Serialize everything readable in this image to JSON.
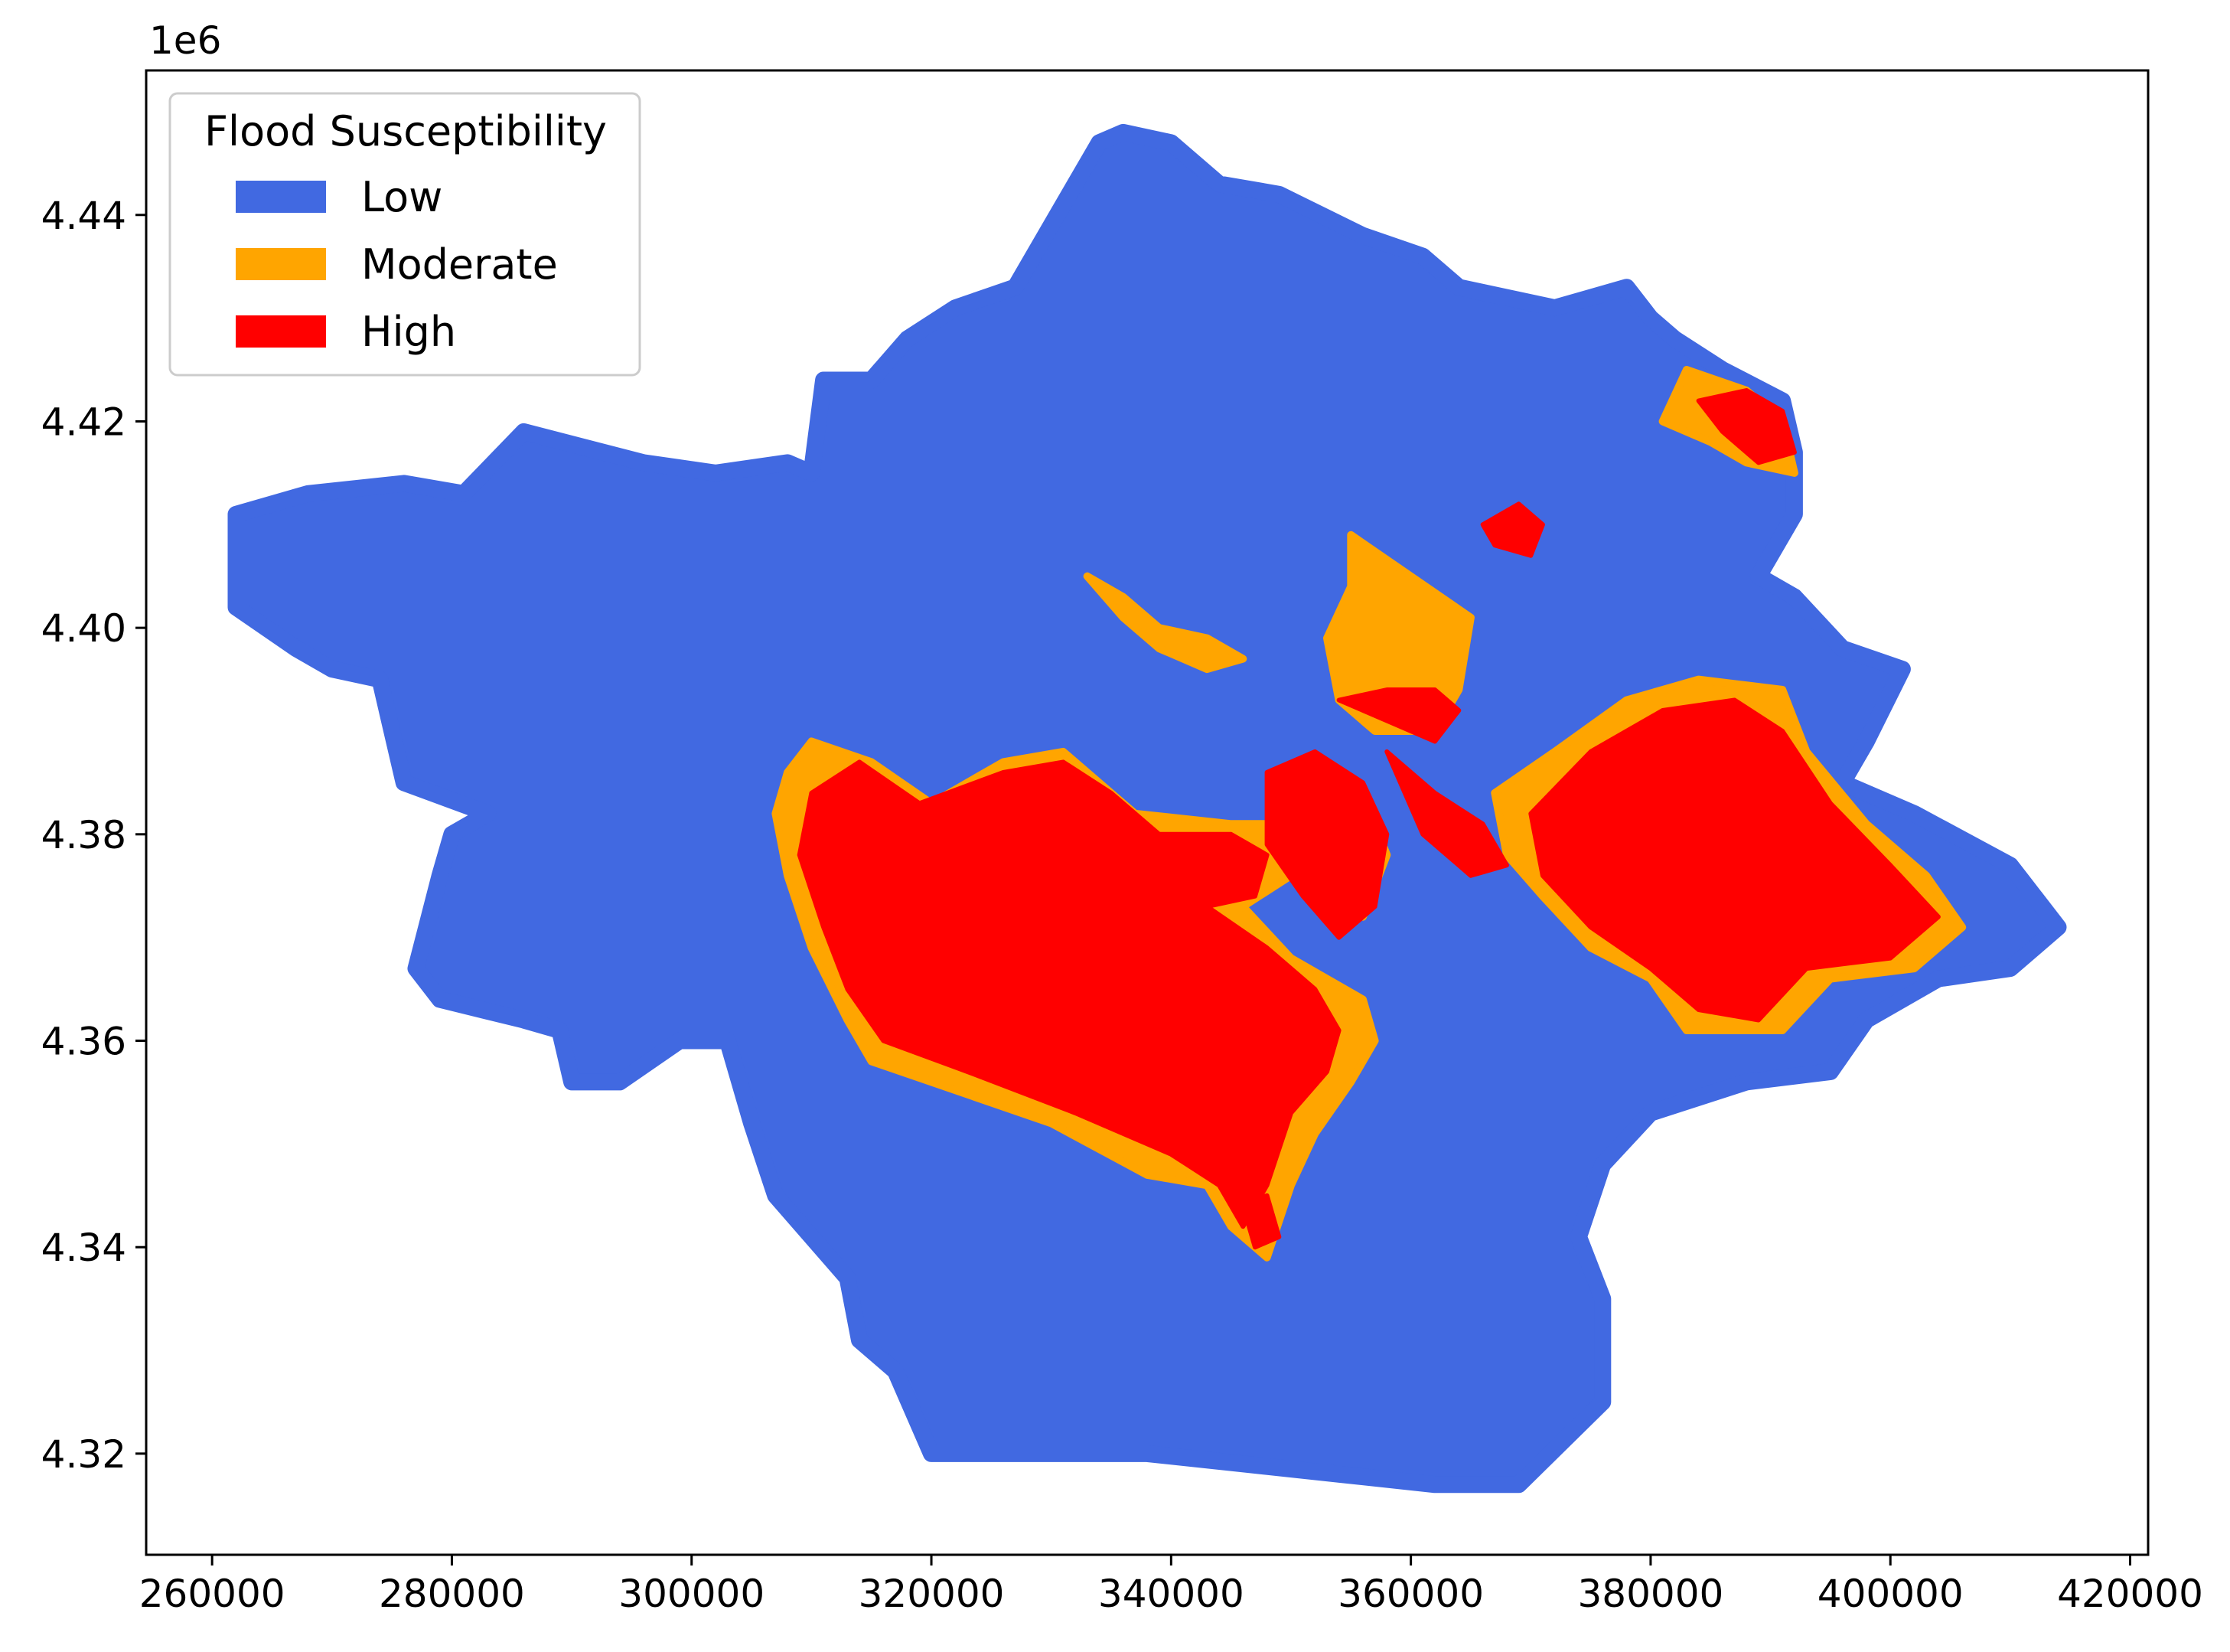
{
  "chart_data": {
    "type": "map",
    "offset_label": "1e6",
    "x_ticks": [
      {
        "value": 260000,
        "label": "260000"
      },
      {
        "value": 280000,
        "label": "280000"
      },
      {
        "value": 300000,
        "label": "300000"
      },
      {
        "value": 320000,
        "label": "320000"
      },
      {
        "value": 340000,
        "label": "340000"
      },
      {
        "value": 360000,
        "label": "360000"
      },
      {
        "value": 380000,
        "label": "380000"
      },
      {
        "value": 400000,
        "label": "400000"
      },
      {
        "value": 420000,
        "label": "420000"
      }
    ],
    "y_ticks": [
      {
        "value": 4.32,
        "label": "4.32"
      },
      {
        "value": 4.34,
        "label": "4.34"
      },
      {
        "value": 4.36,
        "label": "4.36"
      },
      {
        "value": 4.38,
        "label": "4.38"
      },
      {
        "value": 4.4,
        "label": "4.40"
      },
      {
        "value": 4.42,
        "label": "4.42"
      },
      {
        "value": 4.44,
        "label": "4.44"
      }
    ],
    "xlim": [
      254500,
      421500
    ],
    "ylim": [
      4.3102,
      4.454
    ],
    "grid": false,
    "legend": {
      "title": "Flood Susceptibility",
      "placement": "top-left",
      "entries": [
        {
          "label": "Low",
          "color": "#4169E1"
        },
        {
          "label": "Moderate",
          "color": "#FFA500"
        },
        {
          "label": "High",
          "color": "#FF0000"
        }
      ]
    },
    "classes": [
      {
        "name": "Low",
        "color": "#4169E1",
        "boundary": [
          [
            262000,
            4.402
          ],
          [
            262000,
            4.411
          ],
          [
            268000,
            4.413
          ],
          [
            276000,
            4.414
          ],
          [
            281000,
            4.413
          ],
          [
            286000,
            4.419
          ],
          [
            296000,
            4.416
          ],
          [
            302000,
            4.415
          ],
          [
            308000,
            4.416
          ],
          [
            310000,
            4.415
          ],
          [
            311000,
            4.424
          ],
          [
            315000,
            4.424
          ],
          [
            318000,
            4.428
          ],
          [
            322000,
            4.431
          ],
          [
            327000,
            4.433
          ],
          [
            331000,
            4.441
          ],
          [
            334000,
            4.447
          ],
          [
            336000,
            4.448
          ],
          [
            340000,
            4.447
          ],
          [
            344000,
            4.443
          ],
          [
            349000,
            4.442
          ],
          [
            356000,
            4.438
          ],
          [
            361000,
            4.436
          ],
          [
            364000,
            4.433
          ],
          [
            372000,
            4.431
          ],
          [
            378000,
            4.433
          ],
          [
            380000,
            4.43
          ],
          [
            382000,
            4.428
          ],
          [
            386000,
            4.425
          ],
          [
            391000,
            4.422
          ],
          [
            392000,
            4.417
          ],
          [
            392000,
            4.411
          ],
          [
            389000,
            4.405
          ],
          [
            392000,
            4.403
          ],
          [
            396000,
            4.398
          ],
          [
            401000,
            4.396
          ],
          [
            398000,
            4.389
          ],
          [
            396000,
            4.385
          ],
          [
            402000,
            4.382
          ],
          [
            410000,
            4.377
          ],
          [
            414000,
            4.371
          ],
          [
            410000,
            4.367
          ],
          [
            404000,
            4.366
          ],
          [
            398000,
            4.362
          ],
          [
            395000,
            4.357
          ],
          [
            388000,
            4.356
          ],
          [
            380000,
            4.353
          ],
          [
            376000,
            4.348
          ],
          [
            374000,
            4.341
          ],
          [
            376000,
            4.335
          ],
          [
            376000,
            4.325
          ],
          [
            369000,
            4.317
          ],
          [
            362000,
            4.317
          ],
          [
            354000,
            4.318
          ],
          [
            346000,
            4.319
          ],
          [
            338000,
            4.32
          ],
          [
            328000,
            4.32
          ],
          [
            320000,
            4.32
          ],
          [
            317000,
            4.328
          ],
          [
            314000,
            4.331
          ],
          [
            313000,
            4.337
          ],
          [
            307000,
            4.345
          ],
          [
            305000,
            4.352
          ],
          [
            303000,
            4.36
          ],
          [
            299000,
            4.36
          ],
          [
            294000,
            4.356
          ],
          [
            290000,
            4.356
          ],
          [
            289000,
            4.361
          ],
          [
            286000,
            4.362
          ],
          [
            279000,
            4.364
          ],
          [
            277000,
            4.367
          ],
          [
            279000,
            4.376
          ],
          [
            280000,
            4.38
          ],
          [
            283000,
            4.382
          ],
          [
            276000,
            4.385
          ],
          [
            275000,
            4.39
          ],
          [
            274000,
            4.395
          ],
          [
            270000,
            4.396
          ],
          [
            267000,
            4.398
          ],
          [
            262000,
            4.402
          ]
        ]
      },
      {
        "name": "Moderate",
        "color": "#FFA500",
        "regions": [
          [
            [
              308000,
              4.386
            ],
            [
              310000,
              4.389
            ],
            [
              315000,
              4.387
            ],
            [
              320000,
              4.383
            ],
            [
              326000,
              4.387
            ],
            [
              331000,
              4.388
            ],
            [
              337000,
              4.382
            ],
            [
              345000,
              4.381
            ],
            [
              351000,
              4.381
            ],
            [
              350000,
              4.376
            ],
            [
              346000,
              4.373
            ],
            [
              350000,
              4.368
            ],
            [
              356000,
              4.364
            ],
            [
              357000,
              4.36
            ],
            [
              355000,
              4.356
            ],
            [
              352000,
              4.351
            ],
            [
              350000,
              4.346
            ],
            [
              348000,
              4.339
            ],
            [
              345000,
              4.342
            ],
            [
              343000,
              4.346
            ],
            [
              338000,
              4.347
            ],
            [
              330000,
              4.352
            ],
            [
              320000,
              4.356
            ],
            [
              315000,
              4.358
            ],
            [
              313000,
              4.362
            ],
            [
              310000,
              4.369
            ],
            [
              308000,
              4.376
            ],
            [
              307000,
              4.382
            ]
          ],
          [
            [
              367000,
              4.384
            ],
            [
              372000,
              4.388
            ],
            [
              378000,
              4.393
            ],
            [
              384000,
              4.395
            ],
            [
              391000,
              4.394
            ],
            [
              393000,
              4.388
            ],
            [
              398000,
              4.381
            ],
            [
              403000,
              4.376
            ],
            [
              406000,
              4.371
            ],
            [
              402000,
              4.367
            ],
            [
              395000,
              4.366
            ],
            [
              391000,
              4.361
            ],
            [
              383000,
              4.361
            ],
            [
              380000,
              4.366
            ],
            [
              375000,
              4.369
            ],
            [
              371000,
              4.374
            ],
            [
              368000,
              4.378
            ]
          ],
          [
            [
              355000,
              4.409
            ],
            [
              360000,
              4.405
            ],
            [
              365000,
              4.401
            ],
            [
              364000,
              4.394
            ],
            [
              362000,
              4.39
            ],
            [
              357000,
              4.39
            ],
            [
              354000,
              4.393
            ],
            [
              353000,
              4.399
            ],
            [
              355000,
              4.404
            ]
          ],
          [
            [
              351000,
              4.386
            ],
            [
              356000,
              4.384
            ],
            [
              358000,
              4.378
            ],
            [
              356000,
              4.372
            ],
            [
              352000,
              4.376
            ]
          ],
          [
            [
              383000,
              4.425
            ],
            [
              388000,
              4.423
            ],
            [
              391000,
              4.42
            ],
            [
              392000,
              4.415
            ],
            [
              388000,
              4.416
            ],
            [
              385000,
              4.418
            ],
            [
              381000,
              4.42
            ]
          ],
          [
            [
              333000,
              4.405
            ],
            [
              336000,
              4.401
            ],
            [
              339000,
              4.398
            ],
            [
              343000,
              4.396
            ],
            [
              346000,
              4.397
            ],
            [
              343000,
              4.399
            ],
            [
              339000,
              4.4
            ],
            [
              336000,
              4.403
            ]
          ]
        ]
      },
      {
        "name": "High",
        "color": "#FF0000",
        "regions": [
          [
            [
              310000,
              4.384
            ],
            [
              314000,
              4.387
            ],
            [
              319000,
              4.383
            ],
            [
              326000,
              4.386
            ],
            [
              331000,
              4.387
            ],
            [
              335000,
              4.384
            ],
            [
              339000,
              4.38
            ],
            [
              345000,
              4.38
            ],
            [
              348000,
              4.378
            ],
            [
              347000,
              4.374
            ],
            [
              343000,
              4.373
            ],
            [
              348000,
              4.369
            ],
            [
              352000,
              4.365
            ],
            [
              354000,
              4.361
            ],
            [
              353000,
              4.357
            ],
            [
              350000,
              4.353
            ],
            [
              348000,
              4.346
            ],
            [
              346000,
              4.342
            ],
            [
              344000,
              4.346
            ],
            [
              340000,
              4.349
            ],
            [
              332000,
              4.353
            ],
            [
              323000,
              4.357
            ],
            [
              316000,
              4.36
            ],
            [
              313000,
              4.365
            ],
            [
              311000,
              4.371
            ],
            [
              309000,
              4.378
            ]
          ],
          [
            [
              370000,
              4.382
            ],
            [
              375000,
              4.388
            ],
            [
              381000,
              4.392
            ],
            [
              387000,
              4.393
            ],
            [
              391000,
              4.39
            ],
            [
              395000,
              4.383
            ],
            [
              400000,
              4.377
            ],
            [
              404000,
              4.372
            ],
            [
              400000,
              4.368
            ],
            [
              393000,
              4.367
            ],
            [
              389000,
              4.362
            ],
            [
              384000,
              4.363
            ],
            [
              380000,
              4.367
            ],
            [
              375000,
              4.371
            ],
            [
              371000,
              4.376
            ]
          ],
          [
            [
              348000,
              4.386
            ],
            [
              352000,
              4.388
            ],
            [
              356000,
              4.385
            ],
            [
              358000,
              4.38
            ],
            [
              357000,
              4.373
            ],
            [
              354000,
              4.37
            ],
            [
              351000,
              4.374
            ],
            [
              348000,
              4.379
            ]
          ],
          [
            [
              354000,
              4.393
            ],
            [
              358000,
              4.391
            ],
            [
              362000,
              4.389
            ],
            [
              364000,
              4.392
            ],
            [
              362000,
              4.394
            ],
            [
              358000,
              4.394
            ]
          ],
          [
            [
              358000,
              4.388
            ],
            [
              362000,
              4.384
            ],
            [
              366000,
              4.381
            ],
            [
              368000,
              4.377
            ],
            [
              365000,
              4.376
            ],
            [
              361000,
              4.38
            ]
          ],
          [
            [
              384000,
              4.422
            ],
            [
              388000,
              4.423
            ],
            [
              391000,
              4.421
            ],
            [
              392000,
              4.417
            ],
            [
              389000,
              4.416
            ],
            [
              386000,
              4.419
            ]
          ],
          [
            [
              366000,
              4.41
            ],
            [
              369000,
              4.412
            ],
            [
              371000,
              4.41
            ],
            [
              370000,
              4.407
            ],
            [
              367000,
              4.408
            ]
          ],
          [
            [
              346000,
              4.344
            ],
            [
              348000,
              4.345
            ],
            [
              349000,
              4.341
            ],
            [
              347000,
              4.34
            ]
          ]
        ]
      }
    ]
  }
}
